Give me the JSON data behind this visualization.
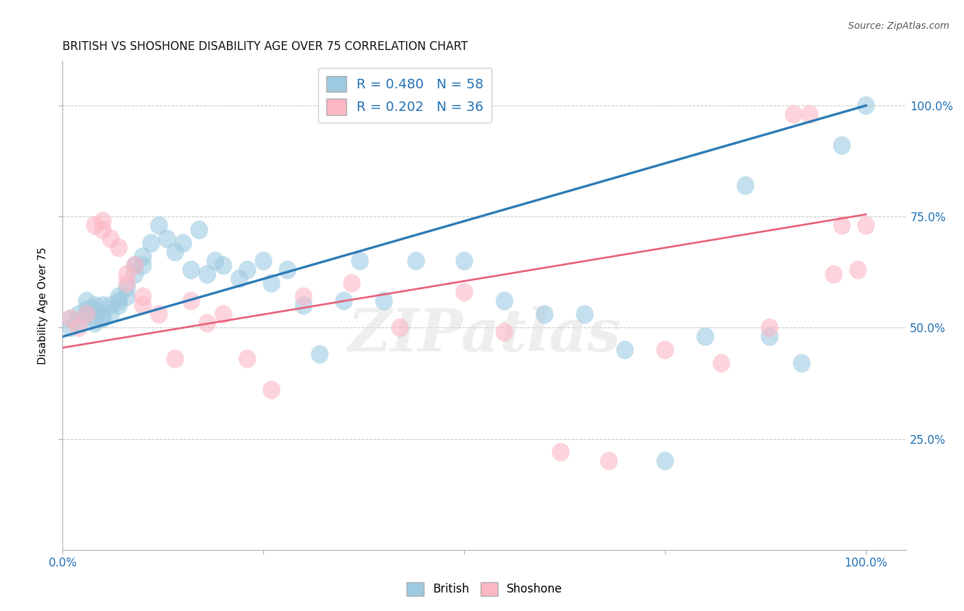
{
  "title": "BRITISH VS SHOSHONE DISABILITY AGE OVER 75 CORRELATION CHART",
  "source": "Source: ZipAtlas.com",
  "ylabel": "Disability Age Over 75",
  "xlim": [
    0.0,
    1.05
  ],
  "ylim": [
    0.0,
    1.1
  ],
  "british_R": 0.48,
  "british_N": 58,
  "shoshone_R": 0.202,
  "shoshone_N": 36,
  "british_color": "#9ecae1",
  "shoshone_color": "#fcb8c5",
  "british_line_color": "#2c7bb6",
  "shoshone_line_color": "#e8607a",
  "british_line_y0": 0.48,
  "british_line_y1": 1.0,
  "shoshone_line_y0": 0.455,
  "shoshone_line_y1": 0.755,
  "british_x": [
    0.01,
    0.01,
    0.02,
    0.02,
    0.03,
    0.03,
    0.03,
    0.04,
    0.04,
    0.04,
    0.04,
    0.05,
    0.05,
    0.05,
    0.06,
    0.06,
    0.07,
    0.07,
    0.07,
    0.08,
    0.08,
    0.09,
    0.09,
    0.1,
    0.1,
    0.11,
    0.12,
    0.13,
    0.14,
    0.15,
    0.16,
    0.17,
    0.18,
    0.19,
    0.2,
    0.22,
    0.23,
    0.25,
    0.26,
    0.28,
    0.3,
    0.32,
    0.35,
    0.37,
    0.4,
    0.44,
    0.5,
    0.55,
    0.6,
    0.65,
    0.7,
    0.75,
    0.8,
    0.85,
    0.88,
    0.92,
    0.97,
    1.0
  ],
  "british_y": [
    0.5,
    0.52,
    0.51,
    0.53,
    0.54,
    0.56,
    0.53,
    0.55,
    0.54,
    0.52,
    0.51,
    0.55,
    0.53,
    0.52,
    0.55,
    0.53,
    0.57,
    0.56,
    0.55,
    0.59,
    0.57,
    0.62,
    0.64,
    0.66,
    0.64,
    0.69,
    0.73,
    0.7,
    0.67,
    0.69,
    0.63,
    0.72,
    0.62,
    0.65,
    0.64,
    0.61,
    0.63,
    0.65,
    0.6,
    0.63,
    0.55,
    0.44,
    0.56,
    0.65,
    0.56,
    0.65,
    0.65,
    0.56,
    0.53,
    0.53,
    0.45,
    0.2,
    0.48,
    0.82,
    0.48,
    0.42,
    0.91,
    1.0
  ],
  "shoshone_x": [
    0.01,
    0.02,
    0.03,
    0.04,
    0.05,
    0.05,
    0.06,
    0.07,
    0.08,
    0.08,
    0.09,
    0.1,
    0.1,
    0.12,
    0.14,
    0.16,
    0.18,
    0.2,
    0.23,
    0.26,
    0.3,
    0.36,
    0.42,
    0.5,
    0.55,
    0.62,
    0.68,
    0.75,
    0.82,
    0.88,
    0.91,
    0.93,
    0.96,
    0.97,
    0.99,
    1.0
  ],
  "shoshone_y": [
    0.52,
    0.5,
    0.53,
    0.73,
    0.72,
    0.74,
    0.7,
    0.68,
    0.6,
    0.62,
    0.64,
    0.57,
    0.55,
    0.53,
    0.43,
    0.56,
    0.51,
    0.53,
    0.43,
    0.36,
    0.57,
    0.6,
    0.5,
    0.58,
    0.49,
    0.22,
    0.2,
    0.45,
    0.42,
    0.5,
    0.98,
    0.98,
    0.62,
    0.73,
    0.63,
    0.73
  ],
  "watermark_text": "ZIPatlas",
  "background_color": "#ffffff",
  "grid_color": "#c8c8c8"
}
